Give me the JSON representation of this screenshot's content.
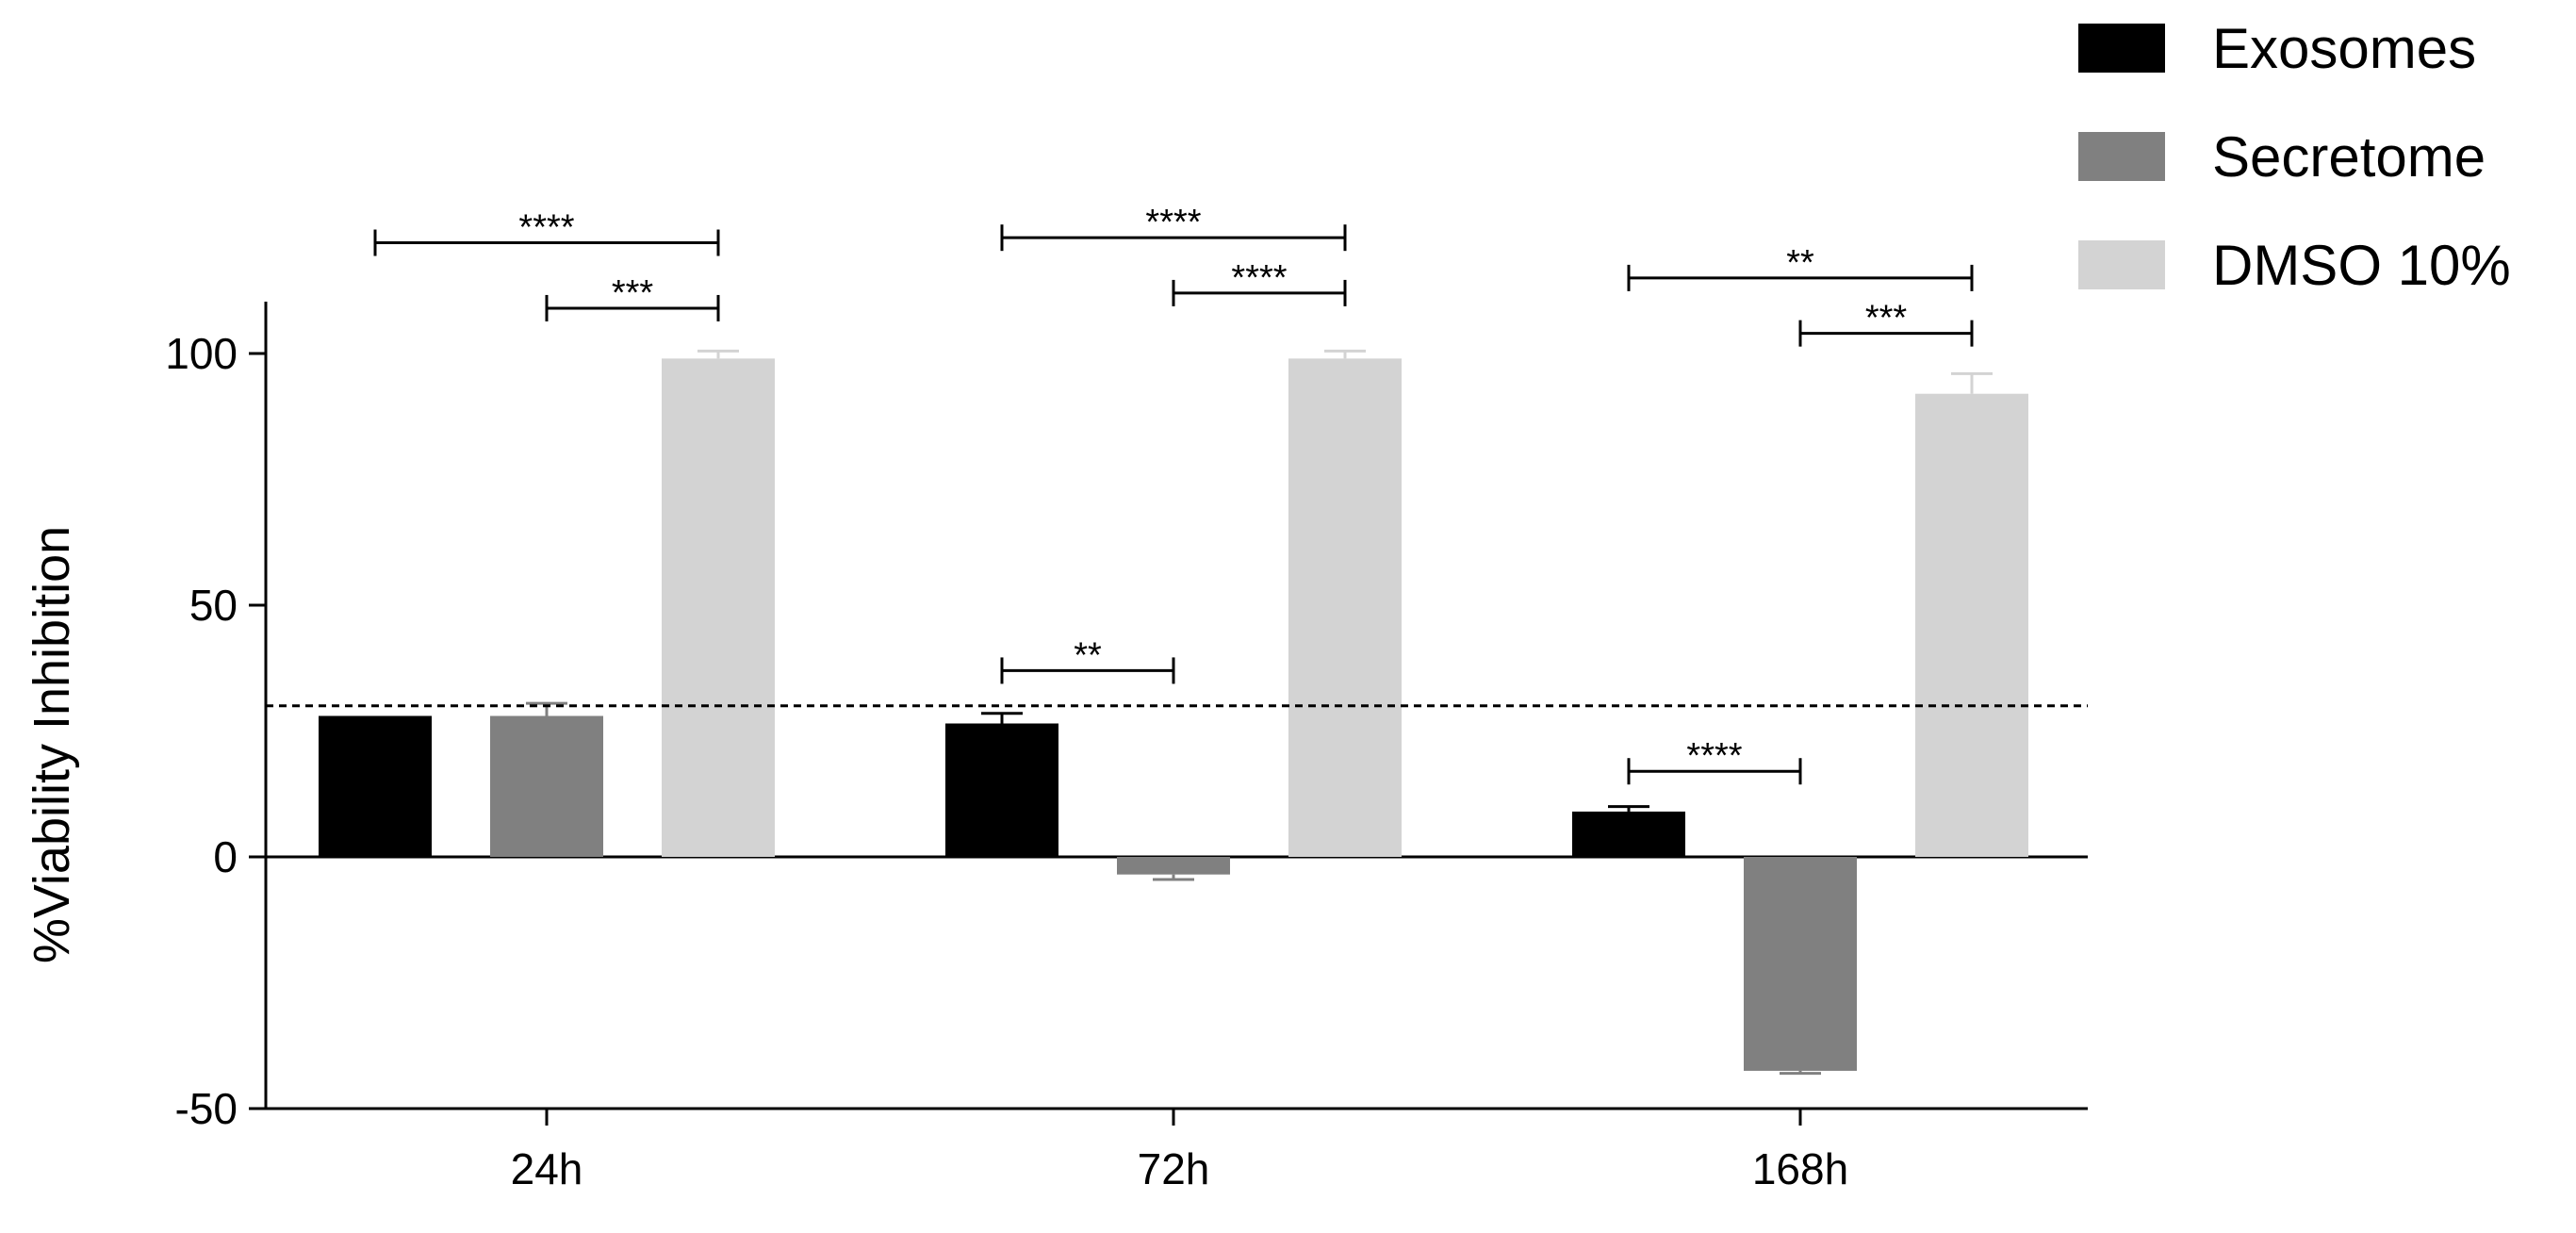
{
  "chart_data": {
    "type": "bar",
    "ylabel": "%Viability Inhibition",
    "xlabel": "",
    "ylim": [
      -50,
      110
    ],
    "yticks": [
      "-50",
      "0",
      "50",
      "100"
    ],
    "categories": [
      "24h",
      "72h",
      "168h"
    ],
    "series": [
      {
        "name": "Exosomes",
        "color": "#000000",
        "values": [
          28,
          26.5,
          9
        ],
        "errors": [
          0,
          2,
          1
        ]
      },
      {
        "name": "Secretome",
        "color": "#808080",
        "values": [
          28,
          -3.5,
          -42.5
        ],
        "errors": [
          2.5,
          1,
          0.5
        ]
      },
      {
        "name": "DMSO 10%",
        "color": "#d3d3d3",
        "values": [
          99,
          99,
          92
        ],
        "errors": [
          1.5,
          1.5,
          4
        ]
      }
    ],
    "reference_line": {
      "y": 30,
      "style": "dashed"
    },
    "legend_position": "top-right",
    "significance": [
      {
        "category": 0,
        "from": 0,
        "to": 2,
        "label": "****",
        "y": 122
      },
      {
        "category": 0,
        "from": 1,
        "to": 2,
        "label": "***",
        "y": 109
      },
      {
        "category": 1,
        "from": 0,
        "to": 2,
        "label": "****",
        "y": 123
      },
      {
        "category": 1,
        "from": 1,
        "to": 2,
        "label": "****",
        "y": 112
      },
      {
        "category": 1,
        "from": 0,
        "to": 1,
        "label": "**",
        "y": 37
      },
      {
        "category": 2,
        "from": 0,
        "to": 2,
        "label": "**",
        "y": 115
      },
      {
        "category": 2,
        "from": 1,
        "to": 2,
        "label": "***",
        "y": 104
      },
      {
        "category": 2,
        "from": 0,
        "to": 1,
        "label": "****",
        "y": 17
      }
    ]
  }
}
